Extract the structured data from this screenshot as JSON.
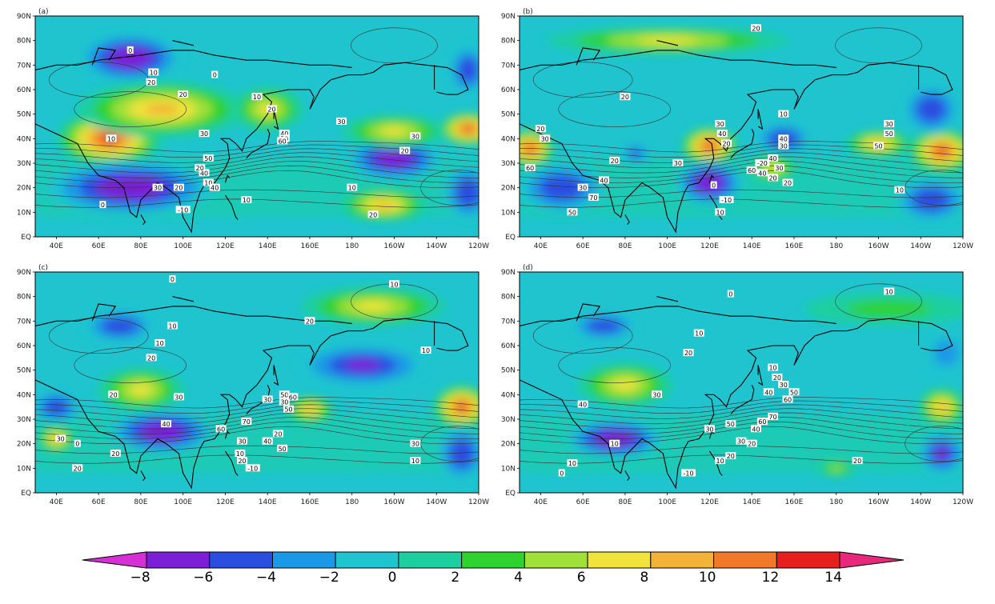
{
  "panels": [
    {
      "id": "a",
      "label": "(a)",
      "contour_labels": [
        "0",
        "10",
        "20",
        "0",
        "10",
        "20",
        "30",
        "40",
        "50",
        "60",
        "10",
        "30",
        "30",
        "20",
        "10",
        "20",
        "10",
        "40",
        "20",
        "50",
        "40",
        "30",
        "20",
        "0",
        "-10",
        "10",
        "20"
      ],
      "anomalies": [
        {
          "lon": 75,
          "lat": 73,
          "v": -8,
          "rx": 22,
          "ry": 9
        },
        {
          "lon": 65,
          "lat": 40,
          "v": 13,
          "rx": 22,
          "ry": 10
        },
        {
          "lon": 90,
          "lat": 52,
          "v": 8,
          "rx": 35,
          "ry": 10
        },
        {
          "lon": 75,
          "lat": 20,
          "v": -8,
          "rx": 35,
          "ry": 10
        },
        {
          "lon": 200,
          "lat": 32,
          "v": -8,
          "rx": 20,
          "ry": 8
        },
        {
          "lon": 200,
          "lat": 43,
          "v": 7,
          "rx": 22,
          "ry": 6
        },
        {
          "lon": 195,
          "lat": 13,
          "v": 8,
          "rx": 18,
          "ry": 6
        },
        {
          "lon": 235,
          "lat": 44,
          "v": 12,
          "rx": 12,
          "ry": 6
        },
        {
          "lon": 235,
          "lat": 18,
          "v": -6,
          "rx": 10,
          "ry": 10
        },
        {
          "lon": 235,
          "lat": 68,
          "v": -6,
          "rx": 8,
          "ry": 9
        },
        {
          "lon": 140,
          "lat": 52,
          "v": 6,
          "rx": 15,
          "ry": 8
        }
      ]
    },
    {
      "id": "b",
      "label": "(b)",
      "contour_labels": [
        "0",
        "20",
        "20",
        "30",
        "60",
        "30",
        "40",
        "20",
        "10",
        "30",
        "50",
        "50",
        "40",
        "30",
        "20",
        "30",
        "60",
        "40",
        "20",
        "0",
        "-10",
        "10",
        "-20",
        "40",
        "30",
        "70",
        "50",
        "40",
        "30",
        "20",
        "10",
        "20"
      ],
      "anomalies": [
        {
          "lon": 35,
          "lat": 36,
          "v": 13,
          "rx": 10,
          "ry": 7
        },
        {
          "lon": 50,
          "lat": 20,
          "v": -6,
          "rx": 18,
          "ry": 9
        },
        {
          "lon": 120,
          "lat": 37,
          "v": 13,
          "rx": 12,
          "ry": 7
        },
        {
          "lon": 120,
          "lat": 22,
          "v": -8,
          "rx": 14,
          "ry": 8
        },
        {
          "lon": 155,
          "lat": 40,
          "v": -6,
          "rx": 12,
          "ry": 6
        },
        {
          "lon": 200,
          "lat": 38,
          "v": 8,
          "rx": 14,
          "ry": 5
        },
        {
          "lon": 230,
          "lat": 35,
          "v": 12,
          "rx": 14,
          "ry": 8
        },
        {
          "lon": 225,
          "lat": 52,
          "v": -6,
          "rx": 12,
          "ry": 9
        },
        {
          "lon": 225,
          "lat": 15,
          "v": -6,
          "rx": 15,
          "ry": 8
        },
        {
          "lon": 85,
          "lat": 34,
          "v": -5,
          "rx": 6,
          "ry": 4
        },
        {
          "lon": 150,
          "lat": 28,
          "v": 6,
          "rx": 10,
          "ry": 5
        },
        {
          "lon": 100,
          "lat": 80,
          "v": 6,
          "rx": 50,
          "ry": 5
        }
      ]
    },
    {
      "id": "c",
      "label": "(c)",
      "contour_labels": [
        "0",
        "10",
        "10",
        "20",
        "10",
        "10",
        "20",
        "30",
        "20",
        "40",
        "30",
        "50",
        "30",
        "60",
        "50",
        "60",
        "70",
        "30",
        "40",
        "20",
        "50",
        "30",
        "10",
        "20",
        "-10",
        "10",
        "20",
        "0",
        "30",
        "20"
      ],
      "anomalies": [
        {
          "lon": 40,
          "lat": 35,
          "v": -6,
          "rx": 10,
          "ry": 6
        },
        {
          "lon": 90,
          "lat": 25,
          "v": -8,
          "rx": 22,
          "ry": 8
        },
        {
          "lon": 70,
          "lat": 68,
          "v": -6,
          "rx": 15,
          "ry": 6
        },
        {
          "lon": 185,
          "lat": 52,
          "v": -7,
          "rx": 28,
          "ry": 8
        },
        {
          "lon": 160,
          "lat": 34,
          "v": 8,
          "rx": 10,
          "ry": 5
        },
        {
          "lon": 232,
          "lat": 35,
          "v": 12,
          "rx": 12,
          "ry": 8
        },
        {
          "lon": 232,
          "lat": 16,
          "v": -6,
          "rx": 10,
          "ry": 10
        },
        {
          "lon": 80,
          "lat": 42,
          "v": 7,
          "rx": 18,
          "ry": 8
        },
        {
          "lon": 190,
          "lat": 76,
          "v": 7,
          "rx": 30,
          "ry": 7
        },
        {
          "lon": 40,
          "lat": 22,
          "v": 8,
          "rx": 8,
          "ry": 5
        }
      ]
    },
    {
      "id": "d",
      "label": "(d)",
      "contour_labels": [
        "0",
        "10",
        "10",
        "20",
        "30",
        "40",
        "10",
        "20",
        "30",
        "40",
        "50",
        "60",
        "70",
        "60",
        "50",
        "30",
        "40",
        "20",
        "30",
        "20",
        "10",
        "10",
        "0",
        "-10",
        "20",
        "10"
      ],
      "anomalies": [
        {
          "lon": 75,
          "lat": 22,
          "v": -8,
          "rx": 20,
          "ry": 7
        },
        {
          "lon": 70,
          "lat": 68,
          "v": -6,
          "rx": 14,
          "ry": 5
        },
        {
          "lon": 80,
          "lat": 44,
          "v": 7,
          "rx": 20,
          "ry": 8
        },
        {
          "lon": 230,
          "lat": 35,
          "v": 9,
          "rx": 10,
          "ry": 7
        },
        {
          "lon": 230,
          "lat": 16,
          "v": -7,
          "rx": 10,
          "ry": 8
        },
        {
          "lon": 232,
          "lat": 57,
          "v": -4,
          "rx": 8,
          "ry": 7
        },
        {
          "lon": 205,
          "lat": 75,
          "v": 3,
          "rx": 35,
          "ry": 6
        },
        {
          "lon": 180,
          "lat": 10,
          "v": 4,
          "rx": 8,
          "ry": 3
        }
      ]
    }
  ],
  "lon_labels": [
    "40E",
    "60E",
    "80E",
    "100E",
    "120E",
    "140E",
    "160E",
    "180",
    "160W",
    "140W",
    "120W"
  ],
  "lat_labels": [
    "EQ",
    "10N",
    "20N",
    "30N",
    "40N",
    "50N",
    "60N",
    "70N",
    "80N",
    "90N"
  ],
  "colorbar": {
    "ticks": [
      "−8",
      "−6",
      "−4",
      "−2",
      "0",
      "2",
      "4",
      "6",
      "8",
      "10",
      "12",
      "14"
    ],
    "colors": [
      "#d62fd6",
      "#7b1fd6",
      "#2b4de0",
      "#1a9ae6",
      "#1fc4cf",
      "#1dcfa0",
      "#2fd22f",
      "#9fe03a",
      "#f1e33b",
      "#f2b338",
      "#f07a2a",
      "#e61e1e",
      "#e8287a"
    ]
  }
}
